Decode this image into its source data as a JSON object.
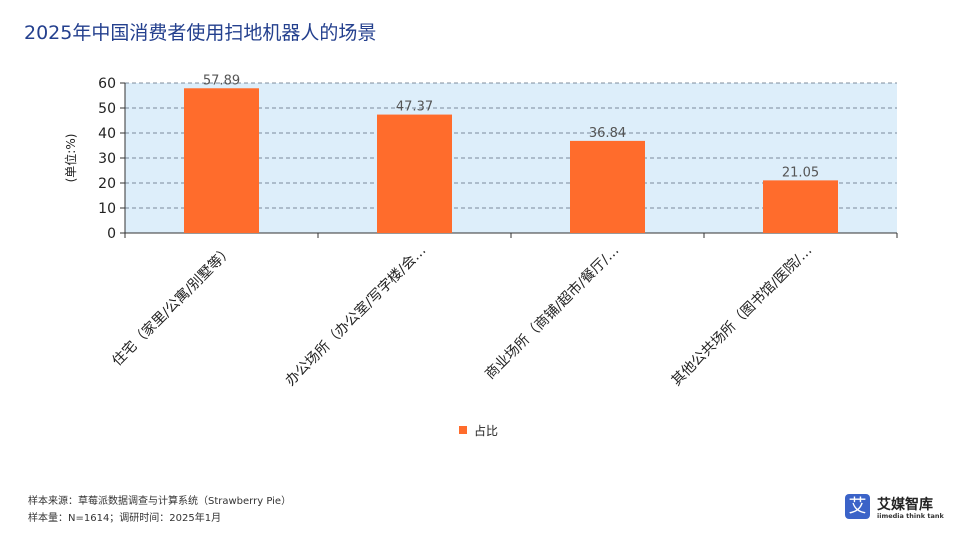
{
  "title": "2025年中国消费者使用扫地机器人的场景",
  "chart_data": {
    "type": "bar",
    "categories": [
      "住宅（家里/公寓/别墅等）",
      "办公场所（办公室/写字楼/会…",
      "商业场所（商铺/超市/餐厅/…",
      "其他公共场所（图书馆/医院/…"
    ],
    "series": [
      {
        "name": "占比",
        "values": [
          57.89,
          47.37,
          36.84,
          21.05
        ]
      }
    ],
    "data_labels": [
      "57.89",
      "47.37",
      "36.84",
      "21.05"
    ],
    "ylabel": "(单位:%)",
    "ylim": [
      0,
      60
    ],
    "yticks": [
      0,
      10,
      20,
      30,
      40,
      50,
      60
    ],
    "grid": true,
    "legend": "bottom",
    "colors": {
      "bar": "#ff6c2c",
      "plot_bg": "#ddeefa",
      "grid": "#5a6b7e",
      "title": "#24408e"
    }
  },
  "footer": {
    "source": "样本来源：草莓派数据调查与计算系统（Strawberry Pie）",
    "sample": "样本量：N=1614；调研时间：2025年1月"
  },
  "logo": {
    "icon": "艾",
    "name": "艾媒智库",
    "sub": "iimedia think tank"
  }
}
